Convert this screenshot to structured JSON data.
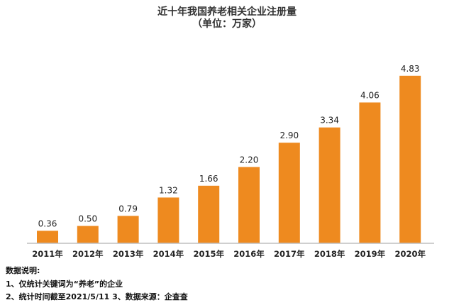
{
  "chart_data": {
    "type": "bar",
    "title": "近十年我国养老相关企业注册量",
    "subtitle": "（单位：万家）",
    "categories": [
      "2011年",
      "2012年",
      "2013年",
      "2014年",
      "2015年",
      "2016年",
      "2017年",
      "2018年",
      "2019年",
      "2020年"
    ],
    "values": [
      0.36,
      0.5,
      0.79,
      1.32,
      1.66,
      2.2,
      2.9,
      3.34,
      4.06,
      4.83
    ],
    "data_labels": [
      "0.36",
      "0.50",
      "0.79",
      "1.32",
      "1.66",
      "2.20",
      "2.90",
      "3.34",
      "4.06",
      "4.83"
    ],
    "xlabel": "",
    "ylabel": "",
    "ylim": [
      0,
      5
    ],
    "grid": false,
    "bar_color": "#EE8A1F",
    "axis_color": "#BFBFBF"
  },
  "notes": {
    "heading": "数据说明:",
    "line1": "1、仅统计关键词为“养老”的企业",
    "line2": "2、统计时间截至2021/5/11  3、数据来源：企查查"
  }
}
